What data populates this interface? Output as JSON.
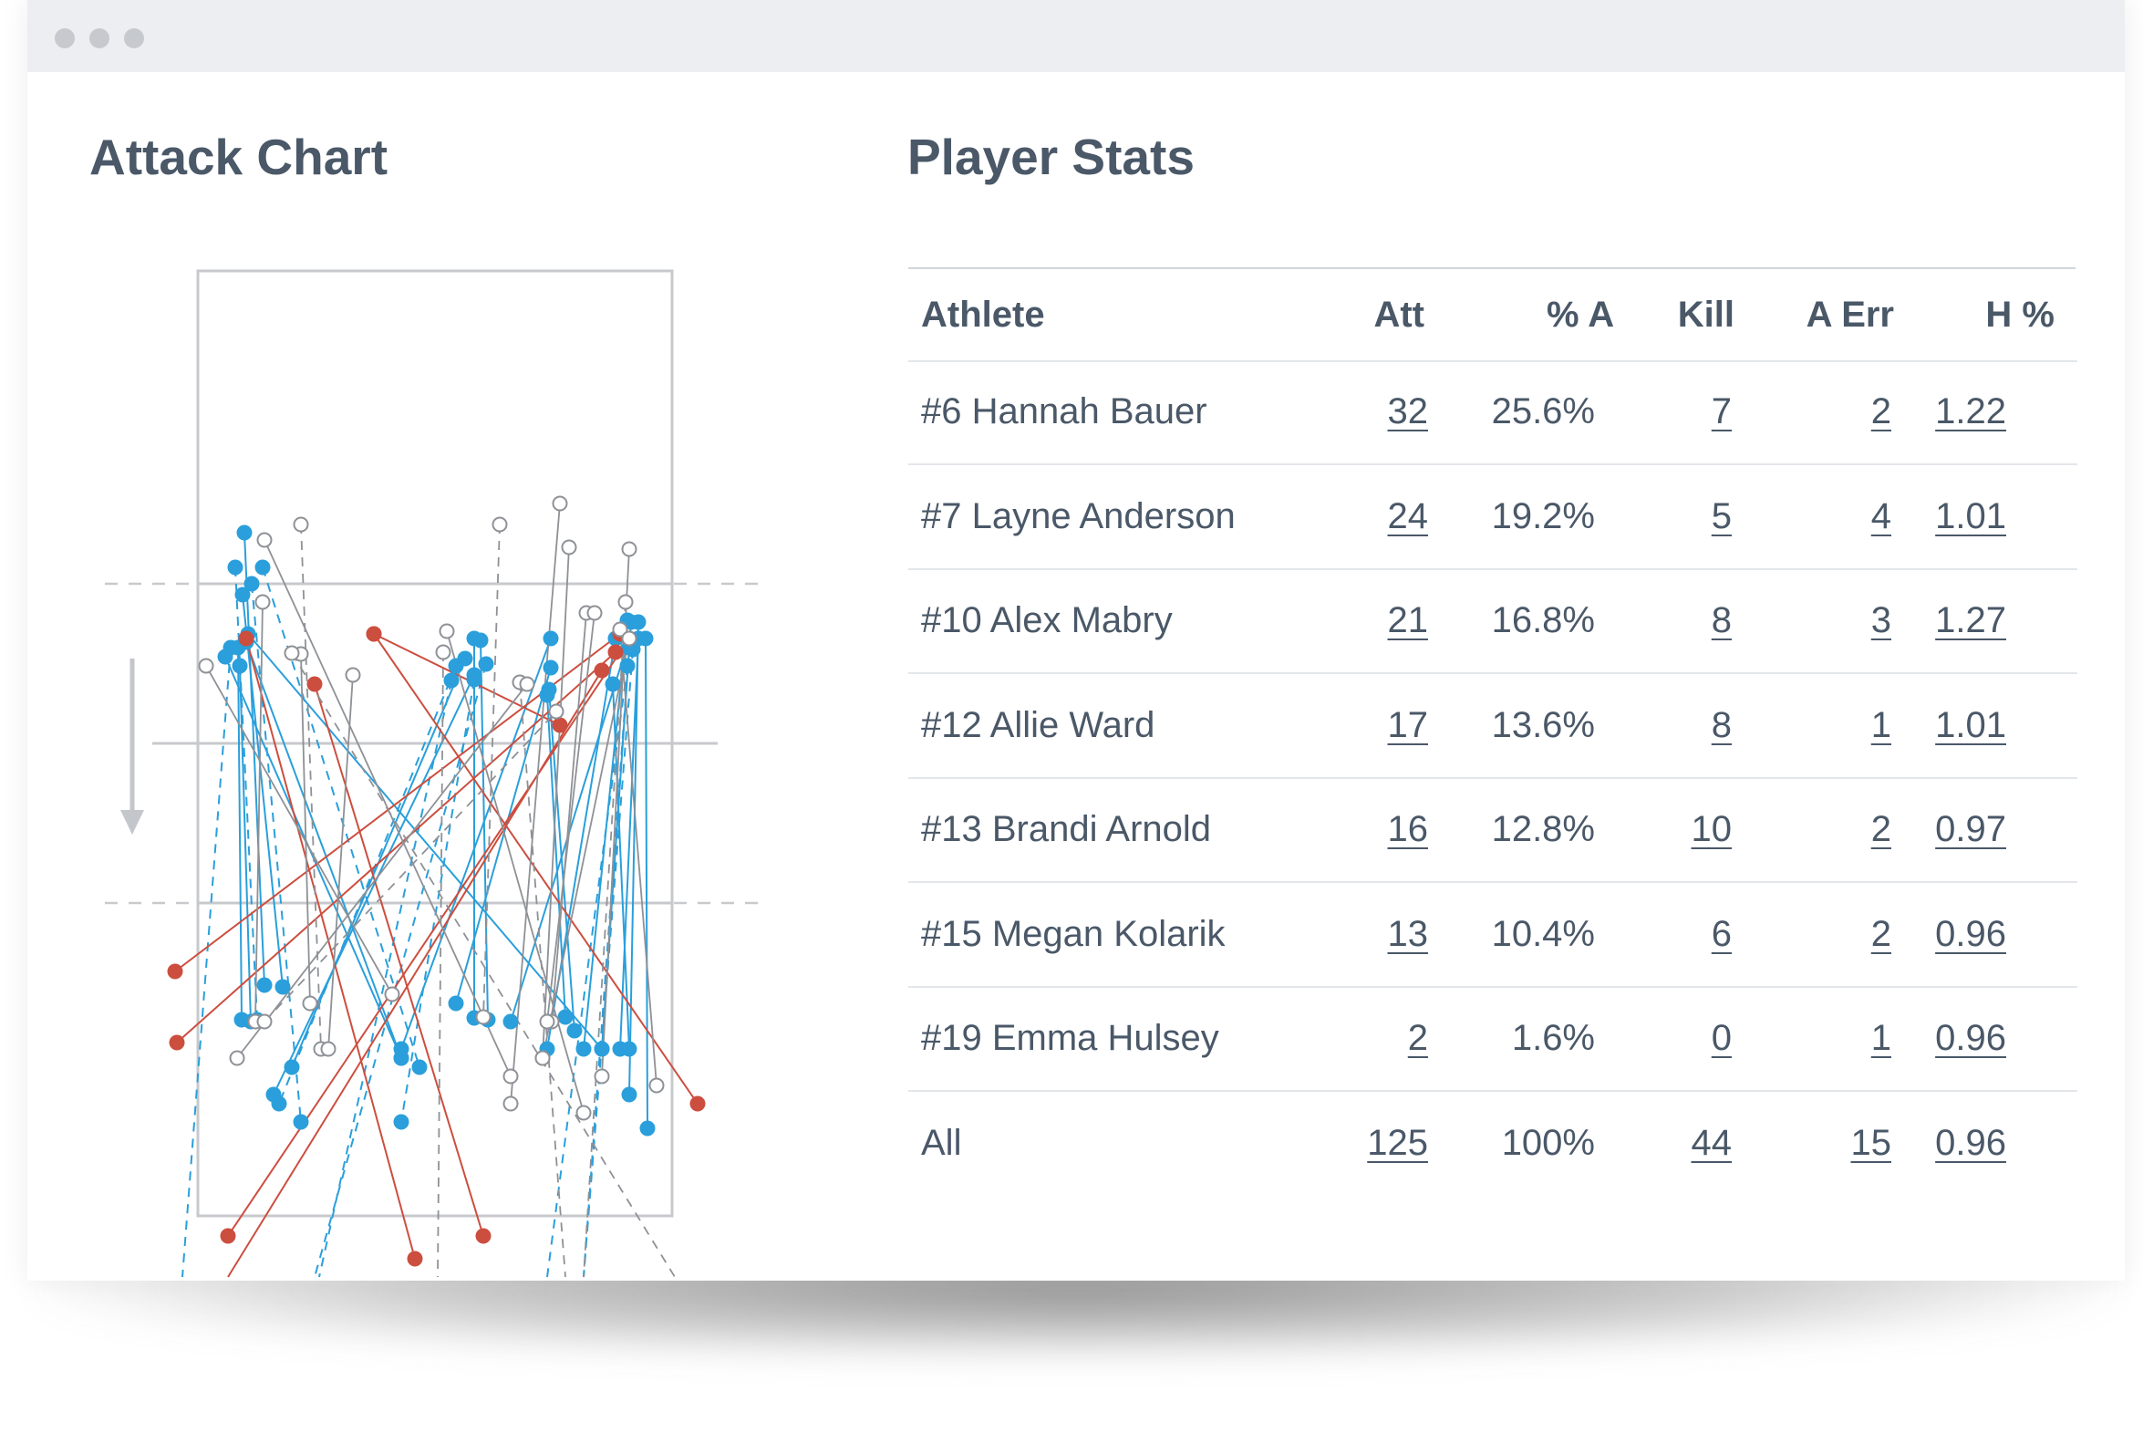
{
  "window": {
    "controls": [
      "close-dot",
      "minimize-dot",
      "maximize-dot"
    ]
  },
  "attack_chart": {
    "title": "Attack Chart",
    "colors": {
      "kill": "#2a9fdb",
      "error": "#cc4e3f",
      "attempt": "#8e9196",
      "court": "#c7c9cc",
      "arrow": "#c3c6cb"
    }
  },
  "player_stats": {
    "title": "Player Stats",
    "columns": [
      "Athlete",
      "Att",
      "% A",
      "Kill",
      "A Err",
      "H %"
    ],
    "rows": [
      {
        "athlete": "#6 Hannah Bauer",
        "att": "32",
        "pct_a": "25.6%",
        "kill": "7",
        "a_err": "2",
        "h_pct": "1.22"
      },
      {
        "athlete": "#7 Layne Anderson",
        "att": "24",
        "pct_a": "19.2%",
        "kill": "5",
        "a_err": "4",
        "h_pct": "1.01"
      },
      {
        "athlete": "#10 Alex Mabry",
        "att": "21",
        "pct_a": "16.8%",
        "kill": "8",
        "a_err": "3",
        "h_pct": "1.27"
      },
      {
        "athlete": "#12 Allie Ward",
        "att": "17",
        "pct_a": "13.6%",
        "kill": "8",
        "a_err": "1",
        "h_pct": "1.01"
      },
      {
        "athlete": "#13 Brandi Arnold",
        "att": "16",
        "pct_a": "12.8%",
        "kill": "10",
        "a_err": "2",
        "h_pct": "0.97"
      },
      {
        "athlete": "#15 Megan Kolarik",
        "att": "13",
        "pct_a": "10.4%",
        "kill": "6",
        "a_err": "2",
        "h_pct": "0.96"
      },
      {
        "athlete": "#19 Emma Hulsey",
        "att": "2",
        "pct_a": "1.6%",
        "kill": "0",
        "a_err": "1",
        "h_pct": "0.96"
      }
    ],
    "total": {
      "athlete": "All",
      "att": "125",
      "pct_a": "100%",
      "kill": "44",
      "a_err": "15",
      "h_pct": "0.96"
    }
  }
}
